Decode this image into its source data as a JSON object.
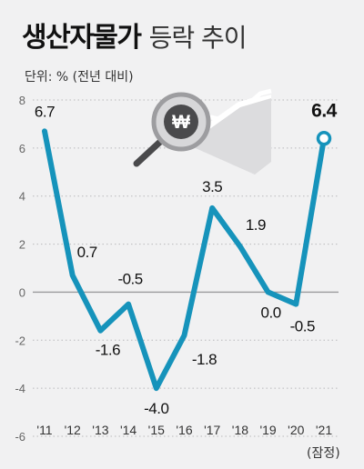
{
  "title_main": "생산자물가",
  "title_sub": "등락 추이",
  "unit_label": "단위: % (전년 대비)",
  "note": "(잠정)",
  "colors": {
    "line": "#1693bb",
    "grid": "#b9b9bb",
    "zero": "#9a9a9c",
    "background": "#f1f1f2"
  },
  "chart_data": {
    "type": "line",
    "x": [
      "'11",
      "'12",
      "'13",
      "'14",
      "'15",
      "'16",
      "'17",
      "'18",
      "'19",
      "'20",
      "'21"
    ],
    "series": [
      {
        "values": [
          6.7,
          0.7,
          -1.6,
          -0.5,
          -4.0,
          -1.8,
          3.5,
          1.9,
          0.0,
          -0.5,
          6.4
        ]
      }
    ],
    "data_labels": [
      "6.7",
      "0.7",
      "-1.6",
      "-0.5",
      "-4.0",
      "-1.8",
      "3.5",
      "1.9",
      "0.0",
      "-0.5",
      "6.4"
    ],
    "ylim": [
      -6,
      8
    ],
    "yticks": [
      8,
      6,
      4,
      2,
      0,
      -2,
      -4,
      -6
    ],
    "ytick_labels": [
      "8",
      "6",
      "4",
      "2",
      "0",
      "-2",
      "-4",
      "-6"
    ],
    "grid": true,
    "decoration_icon": "magnifier-won-icon"
  }
}
